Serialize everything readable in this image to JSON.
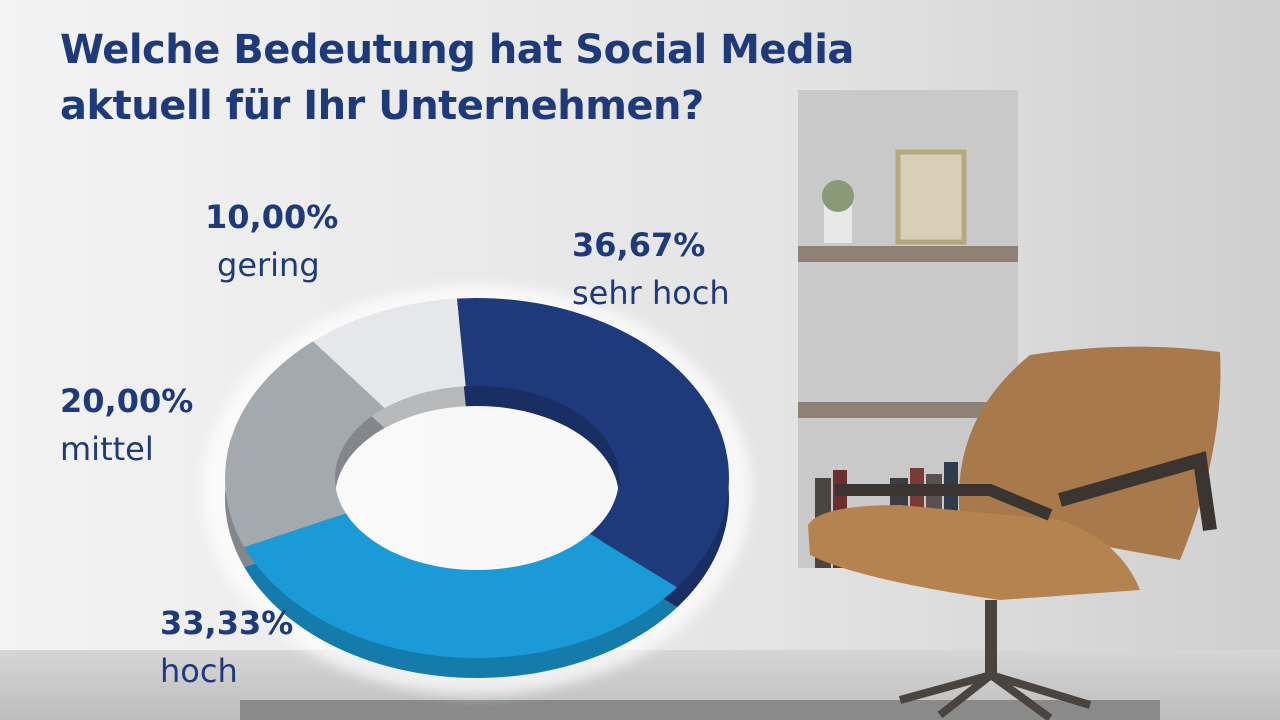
{
  "chart_data": {
    "type": "pie",
    "donut": true,
    "title": "Welche Bedeutung hat Social Media aktuell für Ihr Unternehmen?",
    "categories": [
      "sehr hoch",
      "hoch",
      "mittel",
      "gering"
    ],
    "values": [
      36.67,
      33.33,
      20,
      10
    ],
    "value_labels": [
      "36,67%",
      "33,33%",
      "20,00%",
      "10,00%"
    ],
    "colors": [
      "#1f3a7a",
      "#1a9ad6",
      "#a4a9b0",
      "#e6e7ea"
    ]
  }
}
